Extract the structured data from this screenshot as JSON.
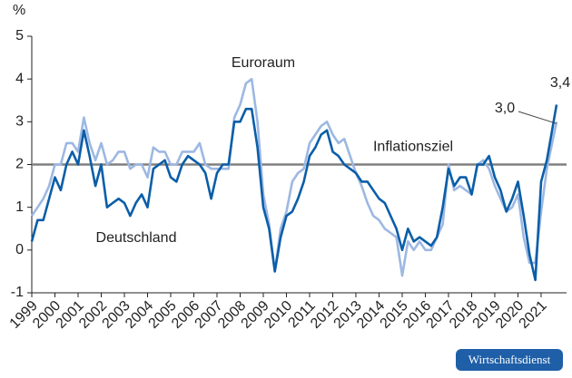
{
  "chart_data": {
    "type": "line",
    "unit_label": "%",
    "x": [
      1999,
      1999.25,
      1999.5,
      1999.75,
      2000,
      2000.25,
      2000.5,
      2000.75,
      2001,
      2001.25,
      2001.5,
      2001.75,
      2002,
      2002.25,
      2002.5,
      2002.75,
      2003,
      2003.25,
      2003.5,
      2003.75,
      2004,
      2004.25,
      2004.5,
      2004.75,
      2005,
      2005.25,
      2005.5,
      2005.75,
      2006,
      2006.25,
      2006.5,
      2006.75,
      2007,
      2007.25,
      2007.5,
      2007.75,
      2008,
      2008.25,
      2008.5,
      2008.75,
      2009,
      2009.25,
      2009.5,
      2009.75,
      2010,
      2010.25,
      2010.5,
      2010.75,
      2011,
      2011.25,
      2011.5,
      2011.75,
      2012,
      2012.25,
      2012.5,
      2012.75,
      2013,
      2013.25,
      2013.5,
      2013.75,
      2014,
      2014.25,
      2014.5,
      2014.75,
      2015,
      2015.25,
      2015.5,
      2015.75,
      2016,
      2016.25,
      2016.5,
      2016.75,
      2017,
      2017.25,
      2017.5,
      2017.75,
      2018,
      2018.25,
      2018.5,
      2018.75,
      2019,
      2019.25,
      2019.5,
      2019.75,
      2020,
      2020.25,
      2020.5,
      2020.75,
      2021,
      2021.25,
      2021.67
    ],
    "series": [
      {
        "name": "Euroraum",
        "color": "#9db8e2",
        "values": [
          0.8,
          1.0,
          1.2,
          1.5,
          2.0,
          2.0,
          2.5,
          2.5,
          2.3,
          3.1,
          2.5,
          2.1,
          2.5,
          2.0,
          2.1,
          2.3,
          2.3,
          1.9,
          2.0,
          2.0,
          1.7,
          2.4,
          2.3,
          2.3,
          2.0,
          2.0,
          2.3,
          2.3,
          2.3,
          2.5,
          2.0,
          1.9,
          1.9,
          1.9,
          1.9,
          3.1,
          3.4,
          3.9,
          4.0,
          3.0,
          1.3,
          0.6,
          -0.5,
          0.5,
          0.9,
          1.6,
          1.8,
          1.9,
          2.5,
          2.7,
          2.9,
          3.0,
          2.7,
          2.5,
          2.6,
          2.2,
          1.8,
          1.5,
          1.1,
          0.8,
          0.7,
          0.5,
          0.4,
          0.3,
          -0.6,
          0.2,
          0.0,
          0.2,
          0.0,
          0.0,
          0.3,
          0.6,
          2.0,
          1.4,
          1.5,
          1.4,
          1.3,
          2.0,
          2.1,
          1.9,
          1.5,
          1.2,
          0.9,
          1.0,
          1.3,
          0.3,
          -0.3,
          -0.3,
          0.9,
          1.9,
          3.0
        ],
        "value_labels": [
          null,
          null,
          null,
          null,
          null,
          null,
          null,
          null,
          null,
          null,
          null,
          null,
          null,
          null,
          null,
          null,
          null,
          null,
          null,
          null,
          null,
          null,
          null,
          null,
          null,
          null,
          null,
          null,
          null,
          null,
          null,
          null,
          null,
          null,
          null,
          null,
          null,
          null,
          null,
          null,
          null,
          null,
          null,
          null,
          null,
          null,
          null,
          null,
          null,
          null,
          null,
          null,
          null,
          null,
          null,
          null,
          null,
          null,
          null,
          null,
          null,
          null,
          null,
          null,
          null,
          null,
          null,
          null,
          null,
          null,
          null,
          null,
          null,
          null,
          null,
          null,
          null,
          null,
          null,
          null,
          null,
          null,
          null,
          null,
          null,
          null,
          null,
          null,
          null,
          null,
          "3,0"
        ]
      },
      {
        "name": "Deutschland",
        "color": "#0b5ea8",
        "values": [
          0.2,
          0.7,
          0.7,
          1.2,
          1.7,
          1.4,
          2.0,
          2.3,
          2.0,
          2.8,
          2.2,
          1.5,
          2.0,
          1.0,
          1.1,
          1.2,
          1.1,
          0.8,
          1.1,
          1.3,
          1.0,
          1.9,
          2.0,
          2.1,
          1.7,
          1.6,
          2.0,
          2.2,
          2.1,
          2.0,
          1.8,
          1.2,
          1.8,
          2.0,
          2.0,
          3.0,
          3.0,
          3.3,
          3.3,
          2.4,
          1.0,
          0.5,
          -0.5,
          0.3,
          0.8,
          0.9,
          1.2,
          1.6,
          2.2,
          2.4,
          2.7,
          2.8,
          2.3,
          2.2,
          2.0,
          1.9,
          1.8,
          1.6,
          1.6,
          1.4,
          1.2,
          1.1,
          0.8,
          0.5,
          0.0,
          0.5,
          0.2,
          0.3,
          0.2,
          0.1,
          0.3,
          1.0,
          1.9,
          1.5,
          1.7,
          1.7,
          1.3,
          2.0,
          2.0,
          2.2,
          1.7,
          1.4,
          0.9,
          1.2,
          1.6,
          0.8,
          -0.1,
          -0.7,
          1.6,
          2.1,
          3.4
        ],
        "value_labels": [
          null,
          null,
          null,
          null,
          null,
          null,
          null,
          null,
          null,
          null,
          null,
          null,
          null,
          null,
          null,
          null,
          null,
          null,
          null,
          null,
          null,
          null,
          null,
          null,
          null,
          null,
          null,
          null,
          null,
          null,
          null,
          null,
          null,
          null,
          null,
          null,
          null,
          null,
          null,
          null,
          null,
          null,
          null,
          null,
          null,
          null,
          null,
          null,
          null,
          null,
          null,
          null,
          null,
          null,
          null,
          null,
          null,
          null,
          null,
          null,
          null,
          null,
          null,
          null,
          null,
          null,
          null,
          null,
          null,
          null,
          null,
          null,
          null,
          null,
          null,
          null,
          null,
          null,
          null,
          null,
          null,
          null,
          null,
          null,
          null,
          null,
          null,
          null,
          null,
          null,
          "3,4"
        ]
      }
    ],
    "target": {
      "value": 2,
      "label": "Inflationsziel",
      "color": "#808080"
    },
    "xlim": [
      1999,
      2022.1
    ],
    "ylim": [
      -1,
      5
    ],
    "xticks": [
      1999,
      2000,
      2001,
      2002,
      2003,
      2004,
      2005,
      2006,
      2007,
      2008,
      2009,
      2010,
      2011,
      2012,
      2013,
      2014,
      2015,
      2016,
      2017,
      2018,
      2019,
      2020,
      2021
    ],
    "yticks": [
      -1,
      0,
      1,
      2,
      3,
      4,
      5
    ],
    "grid": false,
    "source": "Wirtschaftsdienst"
  }
}
